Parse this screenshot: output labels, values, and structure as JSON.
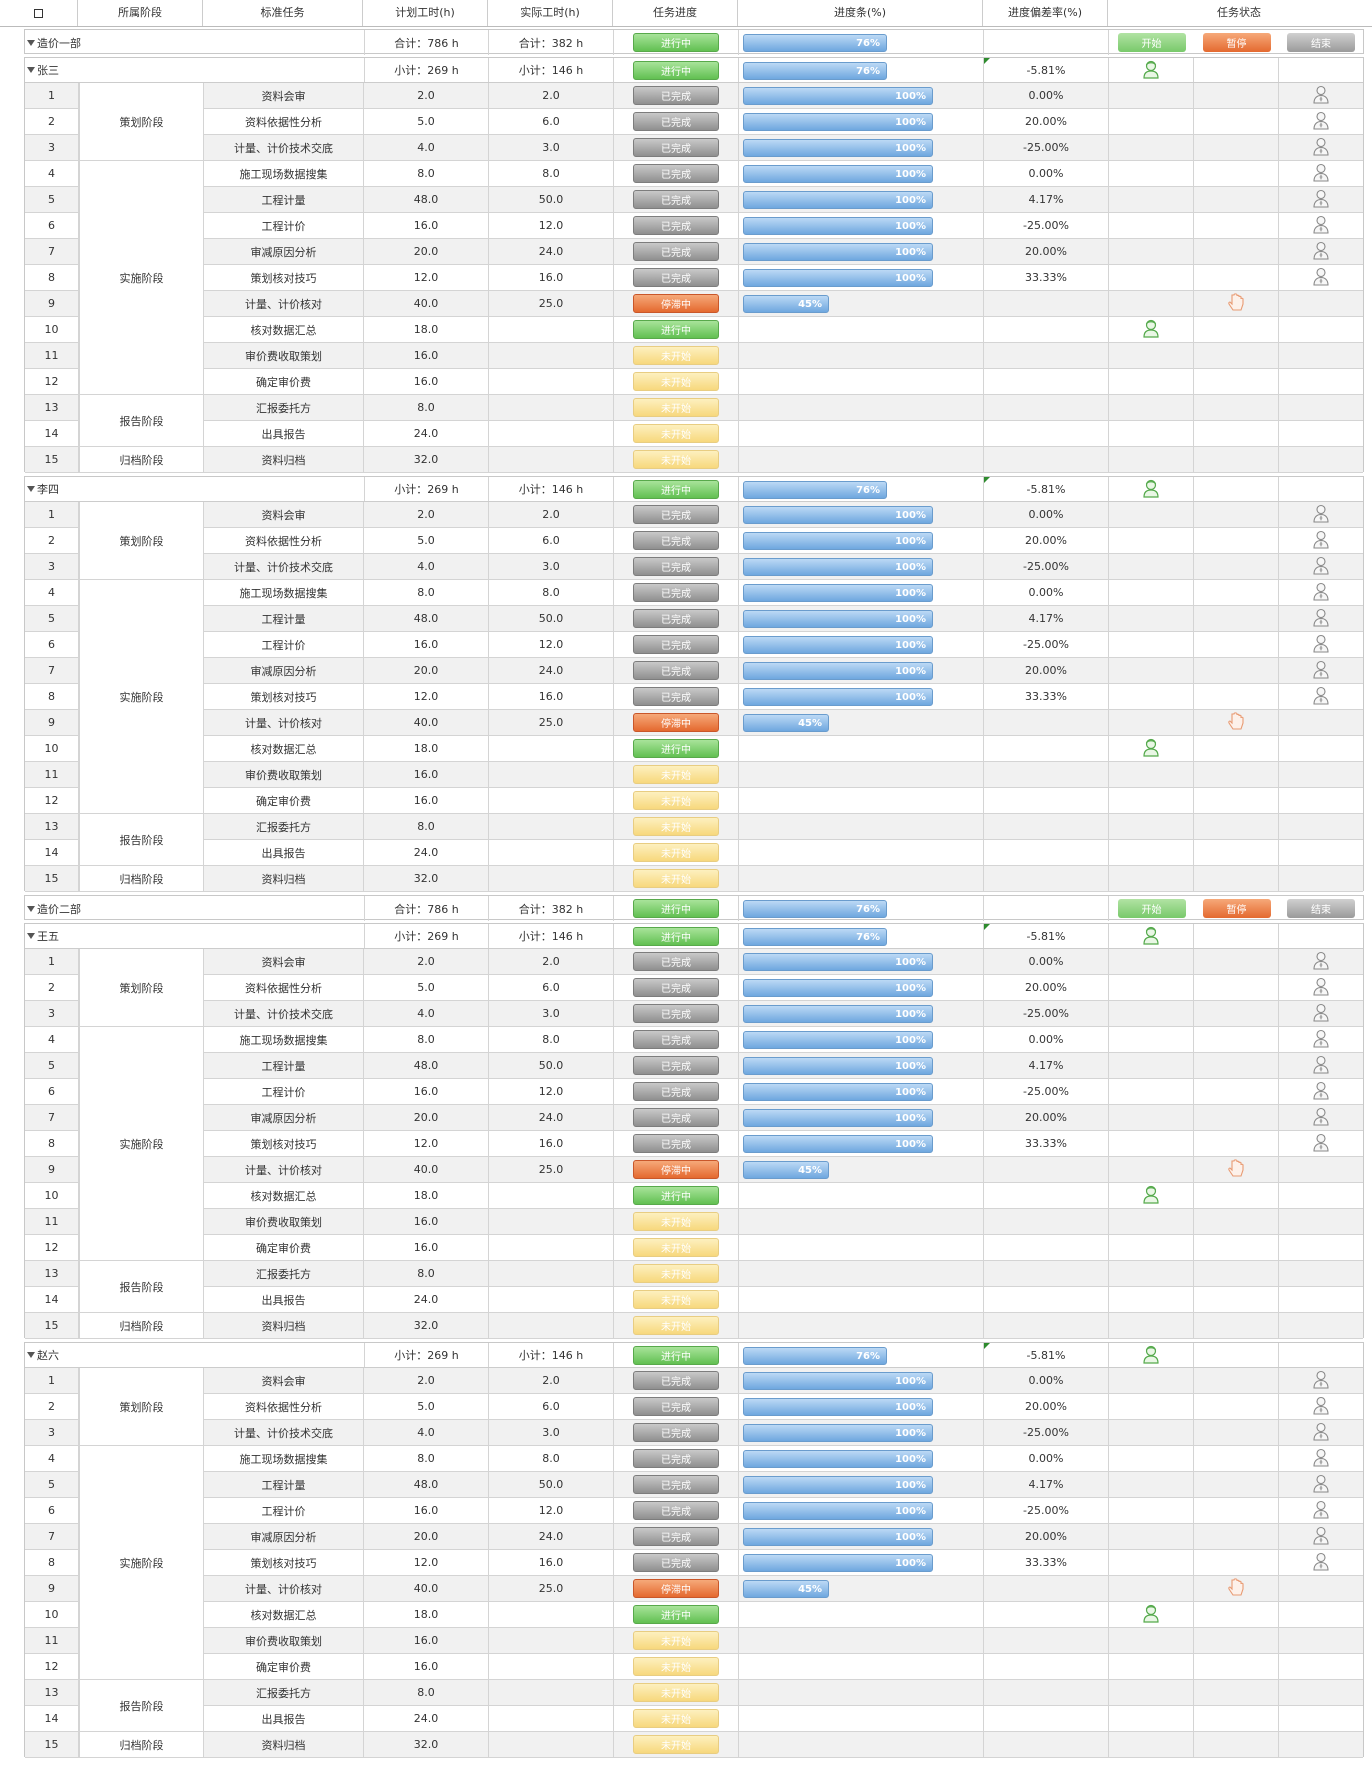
{
  "header": {
    "columns": [
      "所属阶段",
      "标准任务",
      "计划工时(h)",
      "实际工时(h)",
      "任务进度",
      "进度条(%)",
      "进度偏差率(%)",
      "任务状态"
    ]
  },
  "actions": {
    "start": "开始",
    "pause": "暂停",
    "end": "结束"
  },
  "status_labels": {
    "done": "已完成",
    "run": "进行中",
    "stop": "停滞中",
    "todo": "未开始"
  },
  "colors": {
    "done": "#9a9a9a",
    "run": "#62c052",
    "stop": "#e4692f",
    "todo": "#f7d87d",
    "bar": "#6fa7df"
  },
  "icons": {
    "run": "person-working-icon",
    "done": "person-icon",
    "stop": "hand-pointer-icon"
  },
  "tasks": [
    {
      "no": "1",
      "stage": "策划阶段",
      "task": "资料会审",
      "plan": "2.0",
      "actual": "2.0",
      "status": "done",
      "progress": 100,
      "pct": "100%",
      "dev": "0.00%"
    },
    {
      "no": "2",
      "stage": "策划阶段",
      "task": "资料依据性分析",
      "plan": "5.0",
      "actual": "6.0",
      "status": "done",
      "progress": 100,
      "pct": "100%",
      "dev": "20.00%"
    },
    {
      "no": "3",
      "stage": "策划阶段",
      "task": "计量、计价技术交底",
      "plan": "4.0",
      "actual": "3.0",
      "status": "done",
      "progress": 100,
      "pct": "100%",
      "dev": "-25.00%"
    },
    {
      "no": "4",
      "stage": "实施阶段",
      "task": "施工现场数据搜集",
      "plan": "8.0",
      "actual": "8.0",
      "status": "done",
      "progress": 100,
      "pct": "100%",
      "dev": "0.00%"
    },
    {
      "no": "5",
      "stage": "实施阶段",
      "task": "工程计量",
      "plan": "48.0",
      "actual": "50.0",
      "status": "done",
      "progress": 100,
      "pct": "100%",
      "dev": "4.17%"
    },
    {
      "no": "6",
      "stage": "实施阶段",
      "task": "工程计价",
      "plan": "16.0",
      "actual": "12.0",
      "status": "done",
      "progress": 100,
      "pct": "100%",
      "dev": "-25.00%"
    },
    {
      "no": "7",
      "stage": "实施阶段",
      "task": "审减原因分析",
      "plan": "20.0",
      "actual": "24.0",
      "status": "done",
      "progress": 100,
      "pct": "100%",
      "dev": "20.00%"
    },
    {
      "no": "8",
      "stage": "实施阶段",
      "task": "策划核对技巧",
      "plan": "12.0",
      "actual": "16.0",
      "status": "done",
      "progress": 100,
      "pct": "100%",
      "dev": "33.33%"
    },
    {
      "no": "9",
      "stage": "实施阶段",
      "task": "计量、计价核对",
      "plan": "40.0",
      "actual": "25.0",
      "status": "stop",
      "progress": 45,
      "pct": "45%",
      "dev": ""
    },
    {
      "no": "10",
      "stage": "实施阶段",
      "task": "核对数据汇总",
      "plan": "18.0",
      "actual": "",
      "status": "run",
      "progress": 0,
      "pct": "",
      "dev": ""
    },
    {
      "no": "11",
      "stage": "实施阶段",
      "task": "审价费收取策划",
      "plan": "16.0",
      "actual": "",
      "status": "todo",
      "progress": 0,
      "pct": "",
      "dev": ""
    },
    {
      "no": "12",
      "stage": "实施阶段",
      "task": "确定审价费",
      "plan": "16.0",
      "actual": "",
      "status": "todo",
      "progress": 0,
      "pct": "",
      "dev": ""
    },
    {
      "no": "13",
      "stage": "报告阶段",
      "task": "汇报委托方",
      "plan": "8.0",
      "actual": "",
      "status": "todo",
      "progress": 0,
      "pct": "",
      "dev": ""
    },
    {
      "no": "14",
      "stage": "报告阶段",
      "task": "出具报告",
      "plan": "24.0",
      "actual": "",
      "status": "todo",
      "progress": 0,
      "pct": "",
      "dev": ""
    },
    {
      "no": "15",
      "stage": "归档阶段",
      "task": "资料归档",
      "plan": "32.0",
      "actual": "",
      "status": "todo",
      "progress": 0,
      "pct": "",
      "dev": ""
    }
  ],
  "stages": [
    {
      "name": "策划阶段",
      "from": 0,
      "to": 2
    },
    {
      "name": "实施阶段",
      "from": 3,
      "to": 11
    },
    {
      "name": "报告阶段",
      "from": 12,
      "to": 13
    },
    {
      "name": "归档阶段",
      "from": 14,
      "to": 14
    }
  ],
  "departments": [
    {
      "name": "造价一部",
      "plan_total": "合计：786  h",
      "actual_total": "合计：382   h",
      "status": "进行中",
      "progress": 76,
      "pct": "76%",
      "people": [
        {
          "name": "张三",
          "plan_sub": "小计：269   h",
          "actual_sub": "小计：146   h",
          "status": "进行中",
          "progress": 76,
          "pct": "76%",
          "dev": "-5.81%"
        },
        {
          "name": "李四",
          "plan_sub": "小计：269   h",
          "actual_sub": "小计：146   h",
          "status": "进行中",
          "progress": 76,
          "pct": "76%",
          "dev": "-5.81%"
        }
      ]
    },
    {
      "name": "造价二部",
      "plan_total": "合计：786  h",
      "actual_total": "合计：382   h",
      "status": "进行中",
      "progress": 76,
      "pct": "76%",
      "people": [
        {
          "name": "王五",
          "plan_sub": "小计：269   h",
          "actual_sub": "小计：146   h",
          "status": "进行中",
          "progress": 76,
          "pct": "76%",
          "dev": "-5.81%"
        },
        {
          "name": "赵六",
          "plan_sub": "小计：269   h",
          "actual_sub": "小计：146   h",
          "status": "进行中",
          "progress": 76,
          "pct": "76%",
          "dev": "-5.81%"
        }
      ]
    }
  ]
}
